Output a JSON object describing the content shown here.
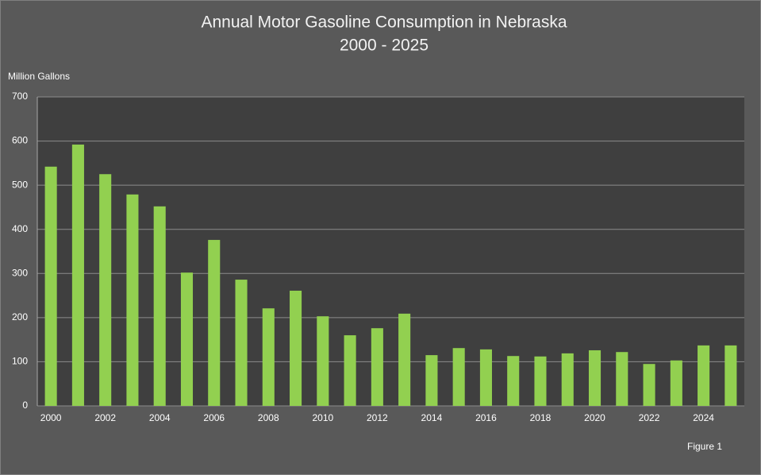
{
  "chart_data": {
    "type": "bar",
    "title": "Annual Motor Gasoline Consumption in Nebraska",
    "subtitle": "2000 - 2025",
    "y_axis_label": "Million Gallons",
    "annotation": "Figure 1",
    "categories": [
      "2000",
      null,
      "2002",
      null,
      "2004",
      null,
      "2006",
      null,
      "2008",
      null,
      "2010",
      null,
      "2012",
      null,
      "2014",
      null,
      "2016",
      null,
      "2018",
      null,
      "2020",
      null,
      "2022",
      null,
      "2024",
      null
    ],
    "values": [
      542,
      592,
      525,
      479,
      452,
      302,
      376,
      286,
      221,
      261,
      203,
      160,
      176,
      209,
      115,
      131,
      128,
      113,
      112,
      119,
      126,
      122,
      95,
      103,
      137,
      137
    ],
    "color": "#92d050",
    "ylim": [
      0,
      700
    ],
    "yticks": [
      0,
      100,
      200,
      300,
      400,
      500,
      600,
      700
    ],
    "grid": true
  }
}
